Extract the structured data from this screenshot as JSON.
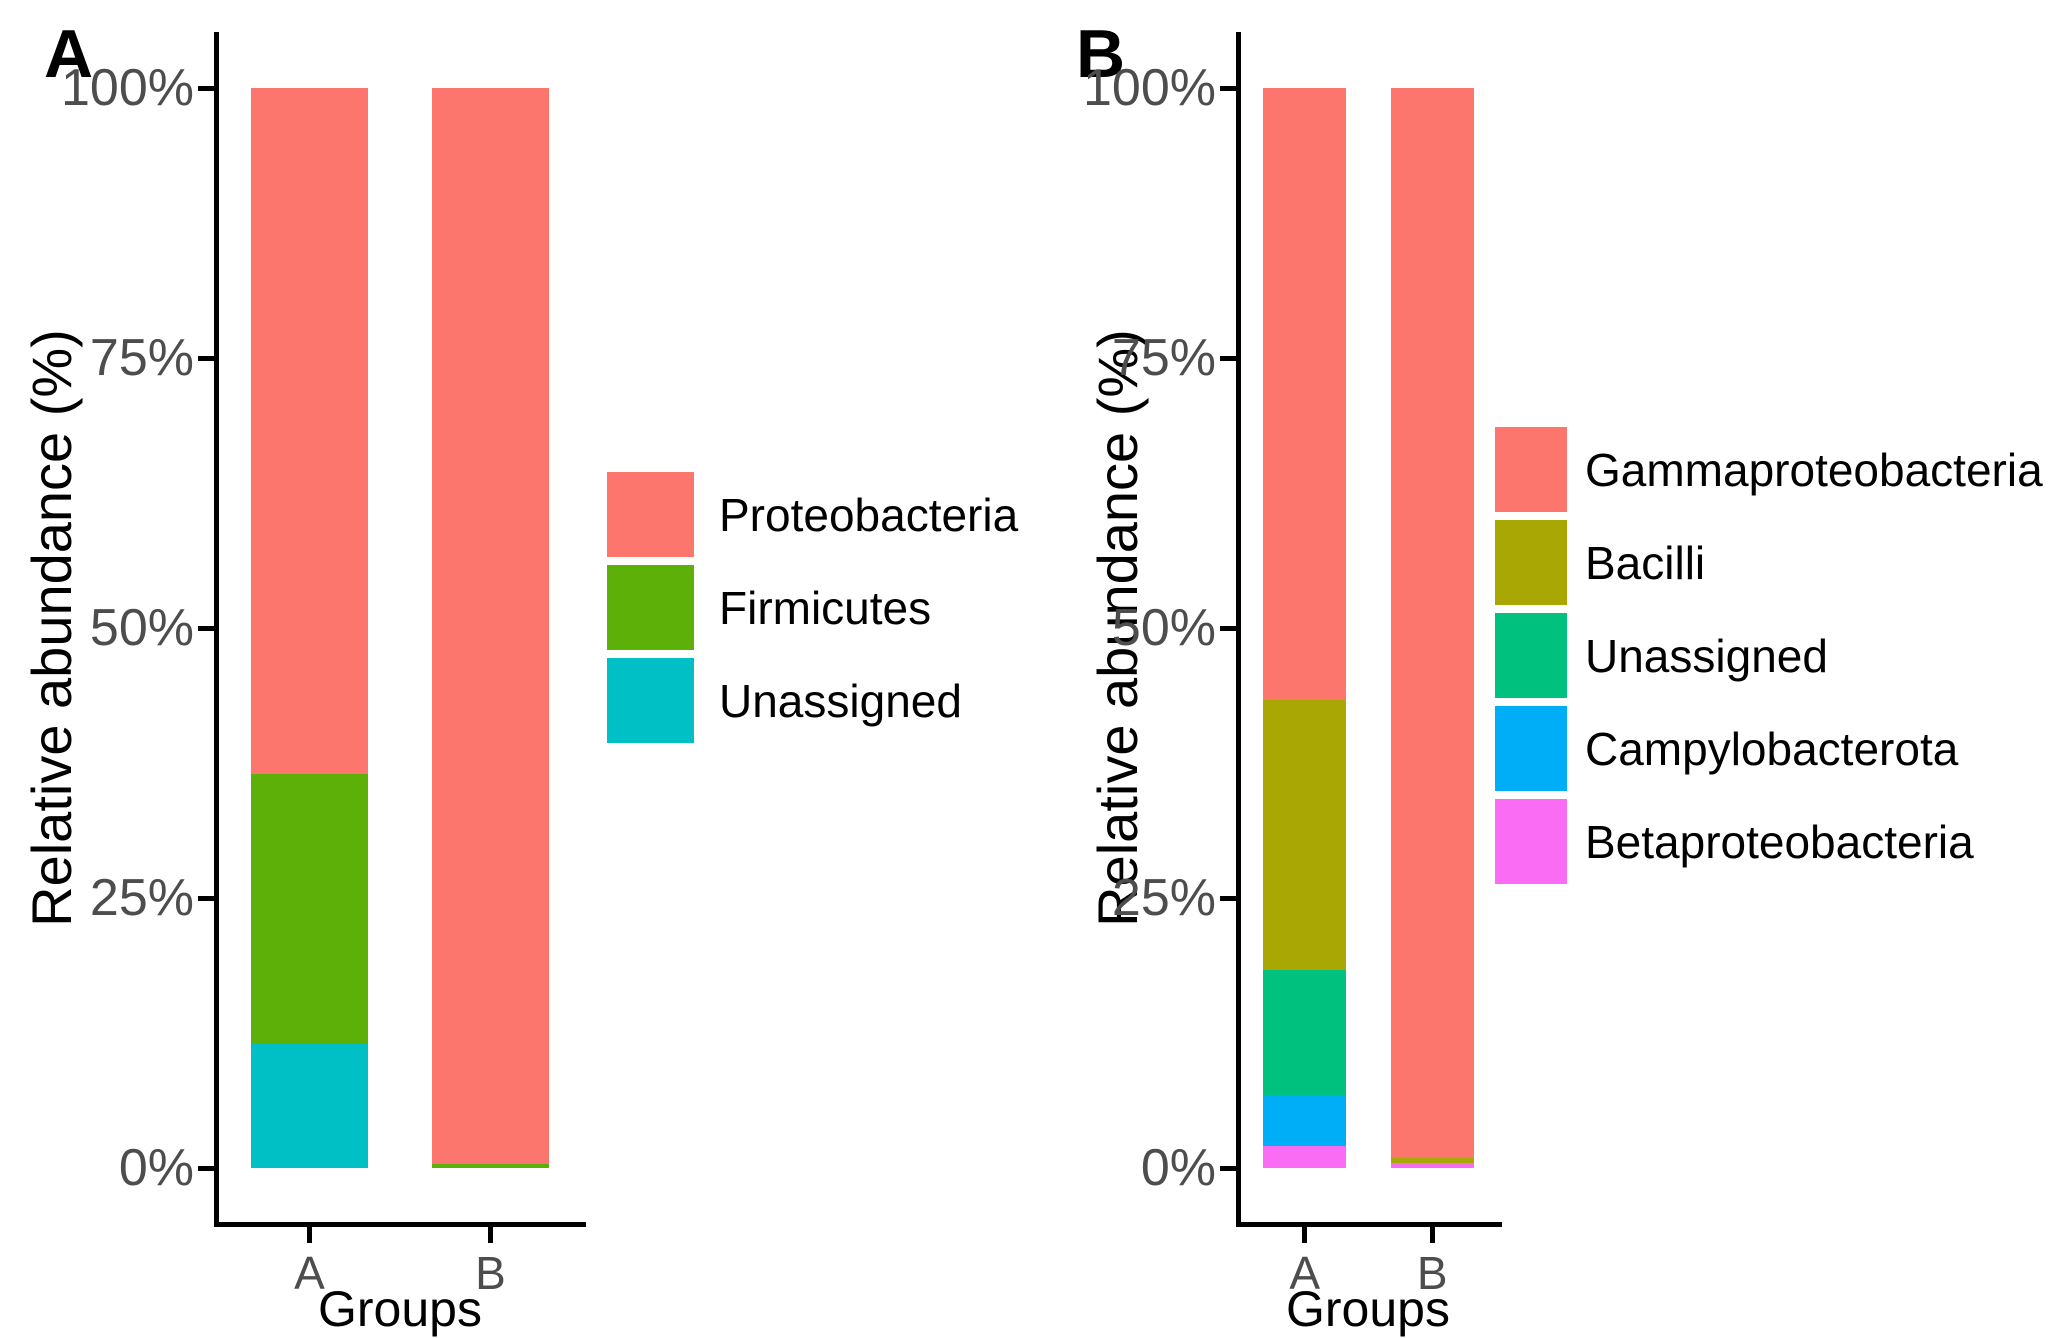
{
  "figure": {
    "background": "#ffffff",
    "description_visible_text_only": true
  },
  "chart_data": [
    {
      "type": "bar",
      "stacked": true,
      "percent": true,
      "panel_label": "A",
      "xlabel": "Groups",
      "ylabel": "Relative abundance (%)",
      "ylim": [
        0,
        100
      ],
      "grid": false,
      "yticks": [
        {
          "value": 0,
          "label": "0%"
        },
        {
          "value": 25,
          "label": "25%"
        },
        {
          "value": 50,
          "label": "50%"
        },
        {
          "value": 75,
          "label": "75%"
        },
        {
          "value": 100,
          "label": "100%"
        }
      ],
      "categories": [
        "A",
        "B"
      ],
      "series": [
        {
          "name": "Unassigned",
          "color": "#00C0C5",
          "values": [
            11.5,
            0
          ]
        },
        {
          "name": "Firmicutes",
          "color": "#5CB008",
          "values": [
            25.0,
            0.4
          ]
        },
        {
          "name": "Proteobacteria",
          "color": "#FC766D",
          "values": [
            63.5,
            99.6
          ]
        }
      ],
      "legend": {
        "position": "right",
        "order": [
          "Proteobacteria",
          "Firmicutes",
          "Unassigned"
        ]
      }
    },
    {
      "type": "bar",
      "stacked": true,
      "percent": true,
      "panel_label": "B",
      "xlabel": "Groups",
      "ylabel": "Relative abundance (%)",
      "ylim": [
        0,
        100
      ],
      "grid": false,
      "yticks": [
        {
          "value": 0,
          "label": "0%"
        },
        {
          "value": 25,
          "label": "25%"
        },
        {
          "value": 50,
          "label": "50%"
        },
        {
          "value": 75,
          "label": "75%"
        },
        {
          "value": 100,
          "label": "100%"
        }
      ],
      "categories": [
        "A",
        "B"
      ],
      "series": [
        {
          "name": "Betaproteobacteria",
          "color": "#FB6CF5",
          "values": [
            2.0,
            0.5
          ]
        },
        {
          "name": "Campylobacterota",
          "color": "#00ADF7",
          "values": [
            4.8,
            0
          ]
        },
        {
          "name": "Unassigned",
          "color": "#00C17D",
          "values": [
            11.5,
            0
          ]
        },
        {
          "name": "Bacilli",
          "color": "#A9A703",
          "values": [
            25.0,
            0.4
          ]
        },
        {
          "name": "Gammaproteobacteria",
          "color": "#FC766D",
          "values": [
            56.7,
            99.1
          ]
        }
      ],
      "legend": {
        "position": "right",
        "order": [
          "Gammaproteobacteria",
          "Bacilli",
          "Unassigned",
          "Campylobacterota",
          "Betaproteobacteria"
        ]
      }
    }
  ]
}
